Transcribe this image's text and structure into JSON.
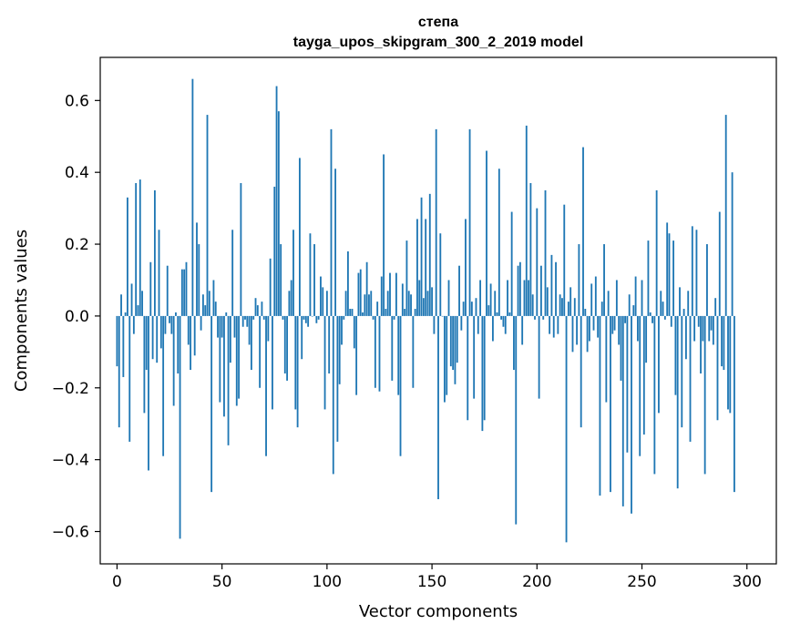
{
  "chart_data": {
    "type": "bar",
    "title": "степа",
    "subtitle": "tayga_upos_skipgram_300_2_2019 model",
    "xlabel": "Vector components",
    "ylabel": "Components values",
    "xlim": [
      -8,
      314
    ],
    "ylim": [
      -0.69,
      0.72
    ],
    "xticks": [
      0,
      50,
      100,
      150,
      200,
      250,
      300
    ],
    "xtick_labels": [
      "0",
      "50",
      "100",
      "150",
      "200",
      "250",
      "300"
    ],
    "yticks": [
      -0.6,
      -0.4,
      -0.2,
      0.0,
      0.2,
      0.4,
      0.6
    ],
    "ytick_labels": [
      "−0.6",
      "−0.4",
      "−0.2",
      "0.0",
      "0.2",
      "0.4",
      "0.6"
    ],
    "bar_color": "#1f77b4",
    "x_start": 0,
    "values": [
      -0.14,
      -0.31,
      0.06,
      -0.17,
      0.01,
      0.33,
      -0.35,
      0.09,
      -0.05,
      0.37,
      0.03,
      0.38,
      0.07,
      -0.27,
      -0.15,
      -0.43,
      0.15,
      -0.12,
      0.35,
      -0.13,
      0.24,
      -0.09,
      -0.39,
      -0.05,
      0.14,
      -0.02,
      -0.05,
      -0.25,
      0.01,
      -0.16,
      -0.62,
      0.13,
      0.13,
      0.15,
      -0.08,
      -0.15,
      0.66,
      -0.11,
      0.26,
      0.2,
      -0.04,
      0.06,
      0.03,
      0.56,
      0.07,
      -0.49,
      0.1,
      0.04,
      -0.06,
      -0.24,
      -0.06,
      -0.28,
      0.01,
      -0.36,
      -0.13,
      0.24,
      -0.06,
      -0.25,
      -0.23,
      0.37,
      -0.03,
      -0.01,
      -0.03,
      -0.08,
      -0.15,
      -0.01,
      0.05,
      0.03,
      -0.2,
      0.04,
      -0.01,
      -0.39,
      -0.07,
      0.16,
      -0.26,
      0.36,
      0.64,
      0.57,
      0.2,
      -0.01,
      -0.16,
      -0.18,
      0.07,
      0.1,
      0.24,
      -0.26,
      -0.31,
      0.44,
      -0.12,
      -0.01,
      -0.02,
      -0.03,
      0.23,
      0.0,
      0.2,
      -0.02,
      -0.01,
      0.11,
      0.08,
      -0.26,
      0.07,
      -0.16,
      0.52,
      -0.44,
      0.41,
      -0.35,
      -0.19,
      -0.08,
      -0.01,
      0.07,
      0.18,
      0.02,
      0.02,
      -0.09,
      -0.22,
      0.12,
      0.13,
      0.01,
      0.06,
      0.15,
      0.06,
      0.07,
      -0.01,
      -0.2,
      0.04,
      -0.21,
      0.11,
      0.45,
      0.02,
      0.07,
      0.12,
      -0.18,
      -0.01,
      0.12,
      -0.22,
      -0.39,
      0.09,
      0.02,
      0.21,
      0.07,
      0.06,
      -0.2,
      0.02,
      0.27,
      0.1,
      0.33,
      0.05,
      0.27,
      0.07,
      0.34,
      0.08,
      -0.05,
      0.52,
      -0.51,
      0.23,
      0.0,
      -0.24,
      -0.22,
      0.1,
      -0.14,
      -0.15,
      -0.19,
      -0.13,
      0.14,
      -0.04,
      0.04,
      0.27,
      -0.29,
      0.52,
      0.04,
      -0.23,
      0.05,
      -0.05,
      0.1,
      -0.32,
      -0.29,
      0.46,
      0.03,
      0.09,
      -0.07,
      0.07,
      0.01,
      0.41,
      -0.01,
      -0.03,
      -0.05,
      0.1,
      0.01,
      0.29,
      -0.15,
      -0.58,
      0.14,
      0.15,
      -0.08,
      0.1,
      0.53,
      0.1,
      0.37,
      0.06,
      -0.01,
      0.3,
      -0.23,
      0.14,
      -0.01,
      0.35,
      0.08,
      -0.05,
      0.17,
      -0.06,
      0.15,
      -0.05,
      0.06,
      0.05,
      0.31,
      -0.63,
      0.04,
      0.08,
      -0.1,
      0.05,
      -0.08,
      0.2,
      -0.31,
      0.47,
      0.02,
      -0.1,
      -0.07,
      0.09,
      -0.04,
      0.11,
      -0.06,
      -0.5,
      0.04,
      0.2,
      -0.24,
      0.07,
      -0.49,
      -0.05,
      -0.04,
      0.1,
      -0.08,
      -0.18,
      -0.53,
      -0.02,
      -0.38,
      0.06,
      -0.55,
      0.03,
      0.11,
      -0.07,
      -0.39,
      0.1,
      -0.33,
      -0.13,
      0.21,
      0.01,
      -0.02,
      -0.44,
      0.35,
      -0.27,
      0.07,
      0.04,
      -0.01,
      0.26,
      0.23,
      -0.03,
      0.21,
      -0.22,
      -0.48,
      0.08,
      -0.31,
      0.02,
      -0.12,
      0.07,
      -0.35,
      0.25,
      -0.07,
      0.24,
      -0.03,
      -0.16,
      -0.07,
      -0.44,
      0.2,
      -0.07,
      -0.04,
      -0.08,
      0.05,
      -0.29,
      0.29,
      -0.14,
      -0.15,
      0.56,
      -0.26,
      -0.27,
      0.4,
      -0.49
    ]
  }
}
